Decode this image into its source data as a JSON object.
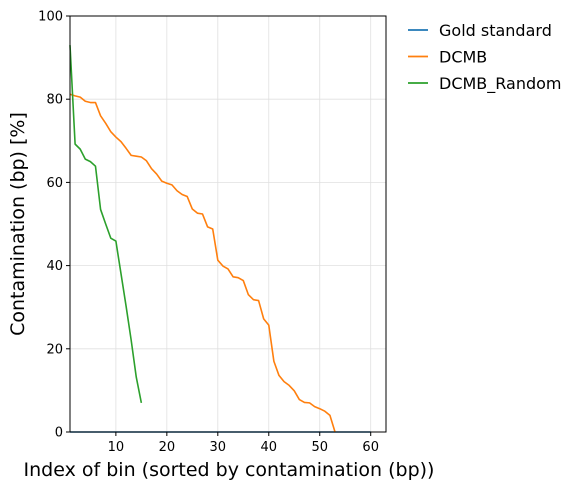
{
  "chart_data": {
    "type": "line",
    "xlabel": "Index of bin (sorted by contamination (bp))",
    "ylabel": "Contamination (bp) [%]",
    "xlim": [
      1,
      63
    ],
    "ylim": [
      0,
      100
    ],
    "x_ticks": [
      10,
      20,
      30,
      40,
      50,
      60
    ],
    "y_ticks": [
      0,
      20,
      40,
      60,
      80,
      100
    ],
    "grid": true,
    "legend_position": "outside-top-right",
    "series": [
      {
        "name": "Gold standard",
        "color": "#1f77b4",
        "x": [
          1,
          60
        ],
        "y": [
          0,
          0
        ]
      },
      {
        "name": "DCMB",
        "color": "#ff7f0e",
        "x": [
          1,
          2,
          3,
          4,
          5,
          6,
          7,
          8,
          9,
          10,
          11,
          12,
          13,
          14,
          15,
          16,
          17,
          18,
          19,
          20,
          21,
          22,
          23,
          24,
          25,
          26,
          27,
          28,
          29,
          30,
          31,
          32,
          33,
          34,
          35,
          36,
          37,
          38,
          39,
          40,
          41,
          42,
          43,
          44,
          45,
          46,
          47,
          48,
          49,
          50,
          51,
          52,
          53
        ],
        "y": [
          81.2,
          80.8,
          80.5,
          79.5,
          79.2,
          79.2,
          76,
          74.2,
          72.2,
          70.9,
          69.8,
          68.2,
          66.5,
          66.3,
          66.1,
          65.2,
          63.3,
          62,
          60.3,
          59.8,
          59.4,
          58,
          57.1,
          56.6,
          53.6,
          52.6,
          52.4,
          49.3,
          48.8,
          41.3,
          39.9,
          39.2,
          37.3,
          37.1,
          36.4,
          33,
          31.8,
          31.6,
          27.2,
          25.7,
          17,
          13.6,
          12.1,
          11.2,
          9.9,
          7.8,
          7.1,
          7,
          6.1,
          5.6,
          5,
          4,
          0
        ]
      },
      {
        "name": "DCMB_Random",
        "color": "#2ca02c",
        "x": [
          1,
          2,
          3,
          4,
          5,
          6,
          7,
          8,
          9,
          10,
          11,
          12,
          13,
          14,
          15
        ],
        "y": [
          93,
          69.2,
          68,
          65.6,
          65,
          63.9,
          53.5,
          50,
          46.6,
          45.9,
          38.1,
          30.3,
          22.1,
          13.2,
          7
        ]
      }
    ]
  }
}
